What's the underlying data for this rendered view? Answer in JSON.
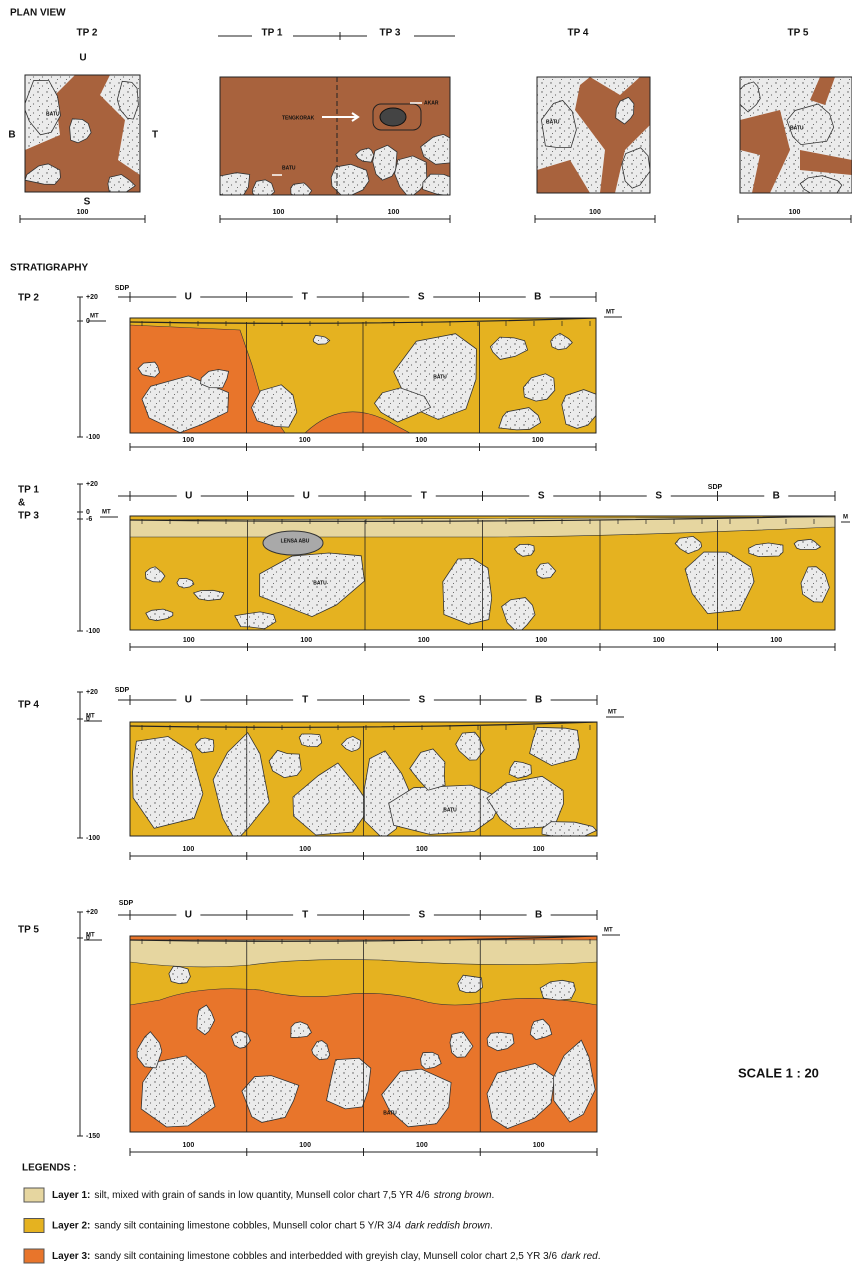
{
  "plan_view": {
    "title": "PLAN VIEW",
    "fill_color": "#a8623d",
    "panels": [
      {
        "labels": [
          "TP 2"
        ],
        "directions": {
          "top": "U",
          "left": "B",
          "right": "T",
          "bottom": "S"
        },
        "notes": [
          "BATU"
        ],
        "scale": [
          "100"
        ]
      },
      {
        "labels": [
          "TP 1",
          "TP 3"
        ],
        "notes": [
          "TENGKORAK",
          "AKAR",
          "BATU"
        ],
        "scale": [
          "100",
          "100"
        ]
      },
      {
        "labels": [
          "TP 4"
        ],
        "notes": [
          "BATU"
        ],
        "scale": [
          "100"
        ]
      },
      {
        "labels": [
          "TP 5"
        ],
        "notes": [
          "BATU"
        ],
        "scale": [
          "100"
        ]
      }
    ]
  },
  "stratigraphy": {
    "title": "STRATIGRAPHY",
    "profiles": [
      {
        "label": [
          "TP 2"
        ],
        "levels": [
          "+20",
          "0",
          "-100"
        ],
        "datum": "SDP",
        "surface": [
          "MT",
          "MT"
        ],
        "directions": [
          "U",
          "T",
          "S",
          "B"
        ],
        "notes": [
          "BATU"
        ],
        "scale": [
          "100",
          "100",
          "100",
          "100"
        ]
      },
      {
        "label": [
          "TP 1",
          "&",
          "TP 3"
        ],
        "levels": [
          "+20",
          "0",
          "-6",
          "-100"
        ],
        "datum": "SDP",
        "surface": [
          "MT",
          "M"
        ],
        "directions": [
          "U",
          "U",
          "T",
          "S",
          "S",
          "B"
        ],
        "notes": [
          "LENSA ABU",
          "BATU"
        ],
        "scale": [
          "100",
          "100",
          "100",
          "100",
          "100",
          "100"
        ]
      },
      {
        "label": [
          "TP 4"
        ],
        "levels": [
          "+20",
          "0",
          "-100"
        ],
        "datum": "SDP",
        "surface": [
          "MT",
          "MT"
        ],
        "directions": [
          "U",
          "T",
          "S",
          "B"
        ],
        "notes": [
          "BATU"
        ],
        "scale": [
          "100",
          "100",
          "100",
          "100"
        ]
      },
      {
        "label": [
          "TP 5"
        ],
        "levels": [
          "+20",
          "0",
          "-150"
        ],
        "datum": "SDP",
        "surface": [
          "MT",
          "MT"
        ],
        "directions": [
          "U",
          "T",
          "S",
          "B"
        ],
        "notes": [
          "BATU"
        ],
        "scale": [
          "100",
          "100",
          "100",
          "100"
        ]
      }
    ]
  },
  "scale": "SCALE 1 : 20",
  "legends": {
    "title": "LEGENDS :",
    "items": [
      {
        "color": "#e6d6a0",
        "label": "Layer 1:",
        "text": "silt, mixed with grain of sands in low quantity, Munsell color chart 7,5 YR 4/6",
        "italic": "strong brown",
        "end": "."
      },
      {
        "color": "#e5b220",
        "label": "Layer 2:",
        "text": "sandy silt containing limestone cobbles, Munsell color chart  5 Y/R 3/4",
        "italic": "dark reddish brown",
        "end": "."
      },
      {
        "color": "#e8752b",
        "label": "Layer 3:",
        "text": "sandy silt containing limestone cobbles and interbedded with greyish clay, Munsell color chart  2,5 YR 3/6",
        "italic": "dark red",
        "end": "."
      }
    ]
  }
}
